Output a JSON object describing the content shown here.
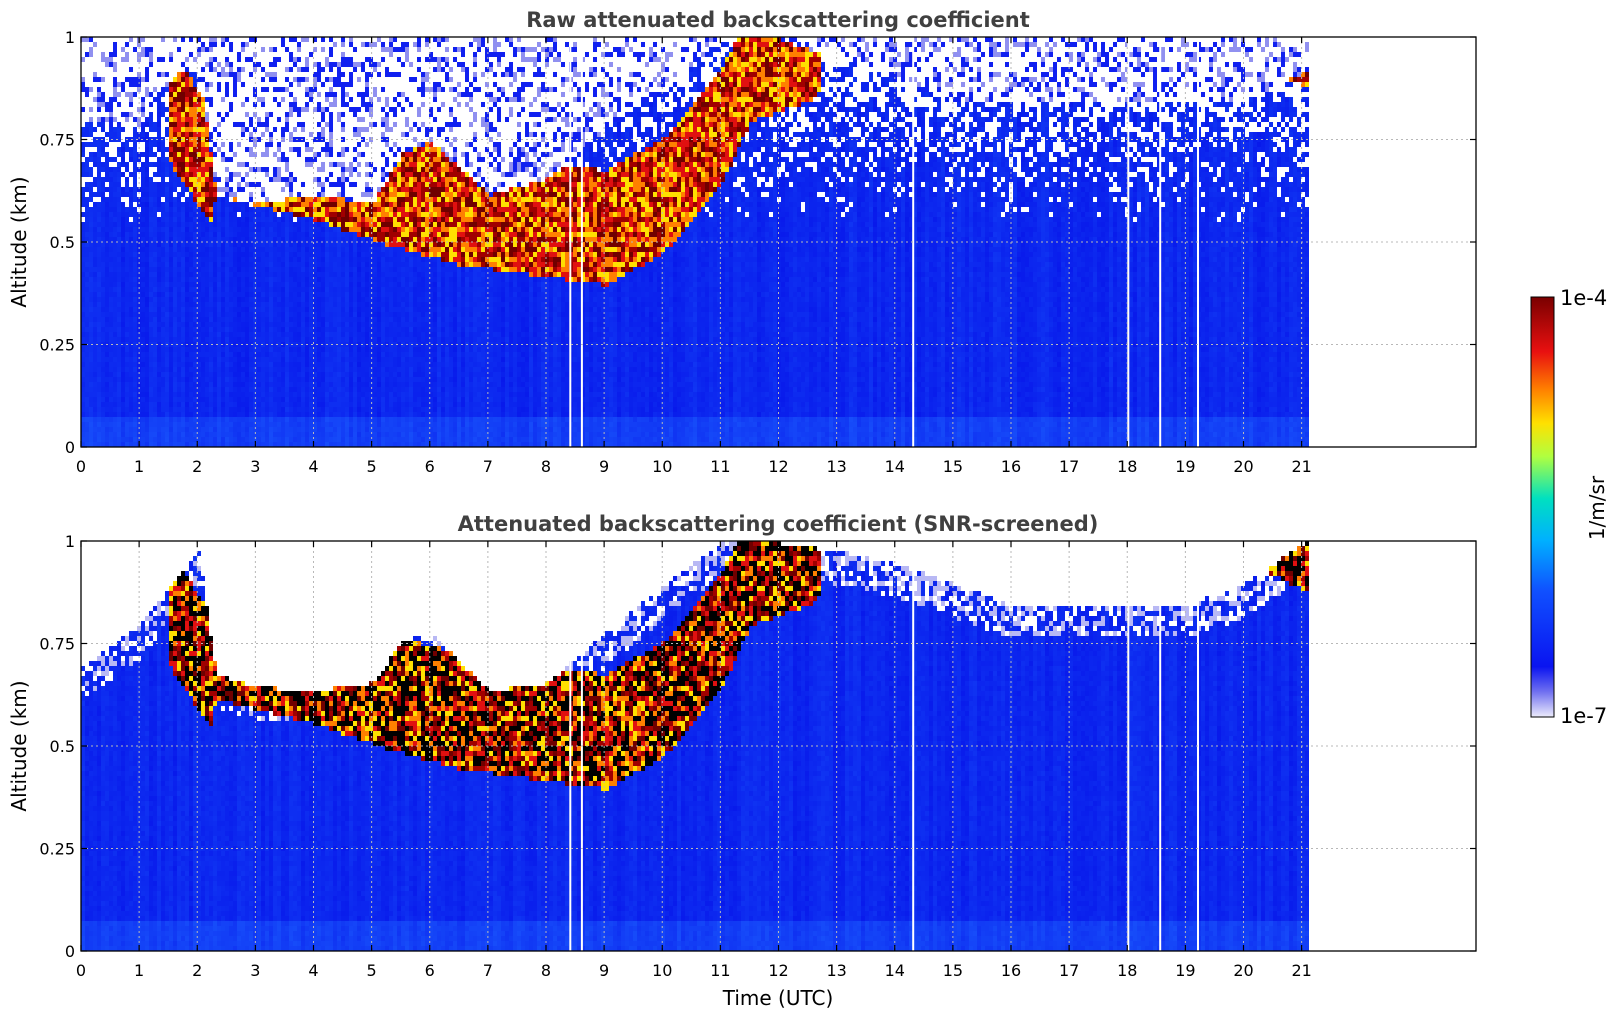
{
  "figure": {
    "colorbar": {
      "max_label": "1e-4",
      "min_label": "1e-7",
      "unit_label": "1/m/sr",
      "scale": "log",
      "colormap": "jet (white at low end)"
    },
    "colors": {
      "title": "#404040",
      "grid": "#b8b8b8",
      "axis": "#000000",
      "low": "#0a1ef0",
      "high": "#8b0000"
    }
  },
  "chart_data": [
    {
      "type": "heatmap",
      "title": "Raw attenuated backscattering coefficient",
      "xlabel": "",
      "ylabel": "Altitude (km)",
      "xlim": [
        0,
        24
      ],
      "ylim": [
        0,
        1
      ],
      "data_x_range": [
        0,
        21.1
      ],
      "grid": true,
      "xticks": [
        "0",
        "1",
        "2",
        "3",
        "4",
        "5",
        "6",
        "7",
        "8",
        "9",
        "10",
        "11",
        "12",
        "13",
        "14",
        "15",
        "16",
        "17",
        "18",
        "19",
        "20",
        "21"
      ],
      "yticks": [
        "0",
        "0.25",
        "0.5",
        "0.75",
        "1"
      ],
      "noise_top_km": 0.55,
      "layer_top_km": [
        [
          0,
          0.8
        ],
        [
          1,
          0.78
        ],
        [
          1.5,
          0.9
        ],
        [
          2.0,
          0.95
        ],
        [
          2.3,
          0.62
        ],
        [
          3,
          0.6
        ],
        [
          4,
          0.62
        ],
        [
          5,
          0.6
        ],
        [
          5.5,
          0.72
        ],
        [
          6,
          0.75
        ],
        [
          7,
          0.62
        ],
        [
          8,
          0.66
        ],
        [
          9,
          0.78
        ],
        [
          10,
          0.88
        ],
        [
          11,
          1.0
        ],
        [
          12,
          1.0
        ],
        [
          13,
          0.95
        ],
        [
          14,
          0.9
        ],
        [
          15,
          0.85
        ],
        [
          16,
          0.85
        ],
        [
          17,
          0.85
        ],
        [
          18,
          0.85
        ],
        [
          19,
          0.85
        ],
        [
          20,
          0.85
        ],
        [
          21,
          0.92
        ]
      ],
      "cloud_base_km": [
        [
          1.5,
          0.7
        ],
        [
          2.2,
          0.55
        ],
        [
          2.3,
          0.62
        ],
        [
          4.0,
          0.56
        ],
        [
          5.2,
          0.5
        ],
        [
          6.5,
          0.45
        ],
        [
          7.5,
          0.43
        ],
        [
          9.0,
          0.4
        ],
        [
          10.0,
          0.48
        ],
        [
          11.0,
          0.65
        ],
        [
          11.5,
          0.8
        ],
        [
          12.5,
          0.85
        ],
        [
          13.2,
          0.95
        ],
        [
          20.5,
          0.92
        ],
        [
          21.1,
          0.88
        ]
      ],
      "data_gaps_utc": [
        8.4,
        8.6,
        14.3,
        18.0,
        18.55,
        19.2
      ]
    },
    {
      "type": "heatmap",
      "title": "Attenuated backscattering coefficient (SNR-screened)",
      "xlabel": "Time (UTC)",
      "ylabel": "Altitude (km)",
      "xlim": [
        0,
        24
      ],
      "ylim": [
        0,
        1
      ],
      "data_x_range": [
        0,
        21.1
      ],
      "grid": true,
      "xticks": [
        "0",
        "1",
        "2",
        "3",
        "4",
        "5",
        "6",
        "7",
        "8",
        "9",
        "10",
        "11",
        "12",
        "13",
        "14",
        "15",
        "16",
        "17",
        "18",
        "19",
        "20",
        "21"
      ],
      "yticks": [
        "0",
        "0.25",
        "0.5",
        "0.75",
        "1"
      ],
      "screened_top_km": [
        [
          0,
          0.7
        ],
        [
          1,
          0.8
        ],
        [
          1.5,
          0.9
        ],
        [
          2.0,
          0.98
        ],
        [
          2.3,
          0.68
        ],
        [
          3,
          0.65
        ],
        [
          4,
          0.64
        ],
        [
          5,
          0.66
        ],
        [
          5.5,
          0.76
        ],
        [
          6,
          0.78
        ],
        [
          7,
          0.64
        ],
        [
          8,
          0.66
        ],
        [
          9,
          0.78
        ],
        [
          10,
          0.9
        ],
        [
          11,
          1.0
        ],
        [
          12,
          1.0
        ],
        [
          13,
          0.98
        ],
        [
          14,
          0.95
        ],
        [
          15,
          0.9
        ],
        [
          16,
          0.85
        ],
        [
          17,
          0.85
        ],
        [
          18,
          0.85
        ],
        [
          19,
          0.85
        ],
        [
          20,
          0.9
        ],
        [
          21,
          1.0
        ]
      ],
      "cloud_base_km": [
        [
          1.5,
          0.7
        ],
        [
          2.2,
          0.55
        ],
        [
          2.3,
          0.62
        ],
        [
          4.0,
          0.56
        ],
        [
          5.2,
          0.5
        ],
        [
          6.5,
          0.45
        ],
        [
          7.5,
          0.43
        ],
        [
          9.0,
          0.4
        ],
        [
          10.0,
          0.48
        ],
        [
          11.0,
          0.65
        ],
        [
          11.5,
          0.8
        ],
        [
          12.5,
          0.85
        ],
        [
          13.2,
          0.95
        ],
        [
          20.5,
          0.92
        ],
        [
          21.1,
          0.88
        ]
      ],
      "data_gaps_utc": [
        8.4,
        8.6,
        14.3,
        18.0,
        18.55,
        19.2
      ]
    }
  ]
}
